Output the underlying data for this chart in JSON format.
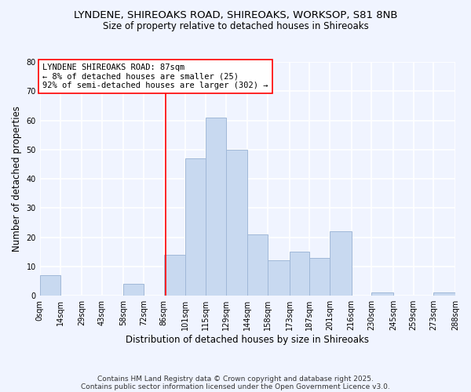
{
  "title1": "LYNDENE, SHIREOAKS ROAD, SHIREOAKS, WORKSOP, S81 8NB",
  "title2": "Size of property relative to detached houses in Shireoaks",
  "xlabel": "Distribution of detached houses by size in Shireoaks",
  "ylabel": "Number of detached properties",
  "bin_edges": [
    0,
    14,
    29,
    43,
    58,
    72,
    86,
    101,
    115,
    129,
    144,
    158,
    173,
    187,
    201,
    216,
    230,
    245,
    259,
    273,
    288
  ],
  "bar_heights": [
    7,
    0,
    0,
    0,
    4,
    0,
    14,
    47,
    61,
    50,
    21,
    12,
    15,
    13,
    22,
    0,
    1,
    0,
    0,
    1
  ],
  "bar_color": "#c8d9f0",
  "bar_edge_color": "#a0b8d8",
  "tick_labels": [
    "0sqm",
    "14sqm",
    "29sqm",
    "43sqm",
    "58sqm",
    "72sqm",
    "86sqm",
    "101sqm",
    "115sqm",
    "129sqm",
    "144sqm",
    "158sqm",
    "173sqm",
    "187sqm",
    "201sqm",
    "216sqm",
    "230sqm",
    "245sqm",
    "259sqm",
    "273sqm",
    "288sqm"
  ],
  "ylim": [
    0,
    80
  ],
  "yticks": [
    0,
    10,
    20,
    30,
    40,
    50,
    60,
    70,
    80
  ],
  "property_line_x": 87,
  "annotation_title": "LYNDENE SHIREOAKS ROAD: 87sqm",
  "annotation_line1": "← 8% of detached houses are smaller (25)",
  "annotation_line2": "92% of semi-detached houses are larger (302) →",
  "footnote1": "Contains HM Land Registry data © Crown copyright and database right 2025.",
  "footnote2": "Contains public sector information licensed under the Open Government Licence v3.0.",
  "background_color": "#f0f4ff",
  "grid_color": "#ffffff",
  "title_fontsize": 9.5,
  "subtitle_fontsize": 8.5,
  "axis_label_fontsize": 8.5,
  "tick_fontsize": 7,
  "annotation_fontsize": 7.5,
  "footnote_fontsize": 6.5
}
